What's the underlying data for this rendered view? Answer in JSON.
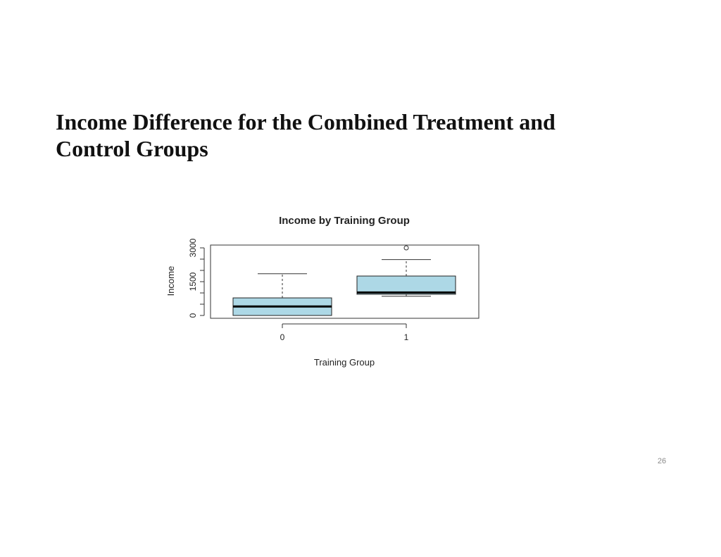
{
  "slide": {
    "title_lines": [
      "Income Difference for the Combined Treatment and",
      "Control Groups"
    ],
    "page_number": "26"
  },
  "chart_data": {
    "type": "boxplot",
    "title": "Income by Training Group",
    "xlabel": "Training Group",
    "ylabel": "Income",
    "categories": [
      "0",
      "1"
    ],
    "y_ticks": [
      0,
      1500,
      3000
    ],
    "ylim": [
      0,
      3000
    ],
    "box_color": "#add8e6",
    "boxes": [
      {
        "group": "0",
        "whisker_low": 0,
        "q1": 0,
        "median": 400,
        "q3": 780,
        "whisker_high": 1850,
        "outliers": []
      },
      {
        "group": "1",
        "whisker_low": 850,
        "q1": 940,
        "median": 1020,
        "q3": 1750,
        "whisker_high": 2480,
        "outliers": [
          3000
        ]
      }
    ],
    "grid": false
  }
}
